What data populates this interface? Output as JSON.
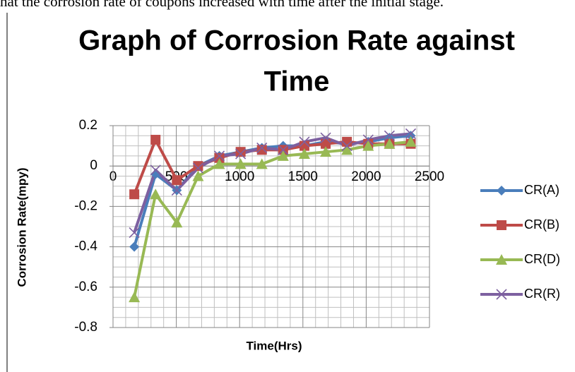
{
  "page_text": "hat the corrosion rate of coupons increased with time after the initial stage.",
  "chart_data": {
    "type": "line",
    "title": [
      "Graph of Corrosion Rate against",
      "Time"
    ],
    "x_label": "Time(Hrs)",
    "y_label": "Corrosion Rate(mpy)",
    "x": [
      168,
      336,
      504,
      672,
      840,
      1008,
      1176,
      1344,
      1512,
      1680,
      1848,
      2016,
      2184,
      2352
    ],
    "series": [
      {
        "name": "CR(A)",
        "color": "#4a7ebb",
        "marker": "diamond",
        "values": [
          -0.4,
          -0.04,
          -0.12,
          0.0,
          0.05,
          0.07,
          0.09,
          0.1,
          0.1,
          0.12,
          0.11,
          0.12,
          0.14,
          0.15
        ]
      },
      {
        "name": "CR(B)",
        "color": "#be4b48",
        "marker": "square",
        "values": [
          -0.14,
          0.13,
          -0.07,
          0.0,
          0.04,
          0.07,
          0.08,
          0.08,
          0.1,
          0.11,
          0.12,
          0.11,
          0.11,
          0.11
        ]
      },
      {
        "name": "CR(D)",
        "color": "#98b954",
        "marker": "triangle",
        "values": [
          -0.65,
          -0.14,
          -0.28,
          -0.05,
          0.01,
          0.01,
          0.01,
          0.05,
          0.06,
          0.07,
          0.08,
          0.1,
          0.11,
          0.12
        ]
      },
      {
        "name": "CR(R)",
        "color": "#7d60a0",
        "marker": "x",
        "values": [
          -0.33,
          -0.02,
          -0.12,
          -0.01,
          0.05,
          0.06,
          0.09,
          0.08,
          0.12,
          0.14,
          0.1,
          0.13,
          0.15,
          0.16
        ]
      }
    ],
    "xlim": [
      0,
      2500
    ],
    "xticks": [
      0,
      500,
      1000,
      1500,
      2000,
      2500
    ],
    "ylim": [
      -0.8,
      0.2
    ],
    "yticks": [
      0.2,
      0,
      -0.2,
      -0.4,
      -0.6,
      -0.8
    ],
    "grid": true,
    "minor_grid": true,
    "legend": "right"
  }
}
